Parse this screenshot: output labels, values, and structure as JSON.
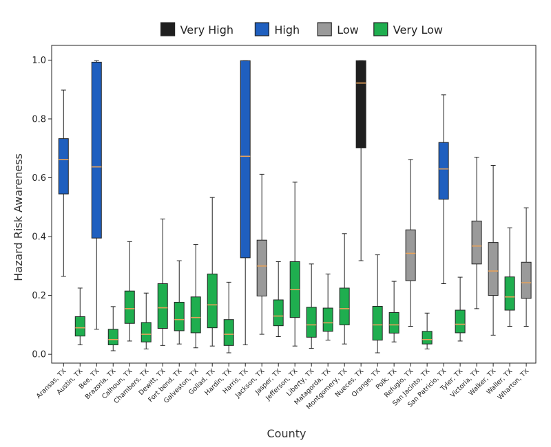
{
  "chart_data": {
    "type": "box",
    "title": "",
    "xlabel": "County",
    "ylabel": "Hazard Risk Awareness",
    "ylim": [
      -0.03,
      1.05
    ],
    "yticks": [
      "0.0",
      "0.2",
      "0.4",
      "0.6",
      "0.8",
      "1.0"
    ],
    "grid": false,
    "legend_position": "top",
    "legend": [
      {
        "name": "Very High",
        "color": "#1f1f1f"
      },
      {
        "name": "High",
        "color": "#1f5fbf"
      },
      {
        "name": "Low",
        "color": "#9a9a9a"
      },
      {
        "name": "Very Low",
        "color": "#1fae4f"
      }
    ],
    "boxes": [
      {
        "label": "Aransas, TX",
        "category": "High",
        "min": 0.265,
        "q1": 0.545,
        "median": 0.662,
        "q3": 0.733,
        "max": 0.898
      },
      {
        "label": "Austin, TX",
        "category": "Very Low",
        "min": 0.032,
        "q1": 0.062,
        "median": 0.09,
        "q3": 0.128,
        "max": 0.225
      },
      {
        "label": "Bee, TX",
        "category": "High",
        "min": 0.085,
        "q1": 0.395,
        "median": 0.637,
        "q3": 0.993,
        "max": 0.998
      },
      {
        "label": "Brazoria, TX",
        "category": "Very Low",
        "min": 0.012,
        "q1": 0.032,
        "median": 0.05,
        "q3": 0.085,
        "max": 0.162
      },
      {
        "label": "Calhoun, TX",
        "category": "Very Low",
        "min": 0.045,
        "q1": 0.105,
        "median": 0.155,
        "q3": 0.215,
        "max": 0.383
      },
      {
        "label": "Chambers, TX",
        "category": "Very Low",
        "min": 0.018,
        "q1": 0.042,
        "median": 0.068,
        "q3": 0.108,
        "max": 0.208
      },
      {
        "label": "Dewitt, TX",
        "category": "Very Low",
        "min": 0.03,
        "q1": 0.088,
        "median": 0.158,
        "q3": 0.24,
        "max": 0.46
      },
      {
        "label": "Fort bend, TX",
        "category": "Very Low",
        "min": 0.035,
        "q1": 0.08,
        "median": 0.118,
        "q3": 0.177,
        "max": 0.318
      },
      {
        "label": "Galveston, TX",
        "category": "Very Low",
        "min": 0.022,
        "q1": 0.073,
        "median": 0.125,
        "q3": 0.195,
        "max": 0.373
      },
      {
        "label": "Goliad, TX",
        "category": "Very Low",
        "min": 0.028,
        "q1": 0.09,
        "median": 0.168,
        "q3": 0.273,
        "max": 0.533
      },
      {
        "label": "Hardin, TX",
        "category": "Very Low",
        "min": 0.005,
        "q1": 0.03,
        "median": 0.068,
        "q3": 0.118,
        "max": 0.245
      },
      {
        "label": "Harris, TX",
        "category": "High",
        "min": 0.032,
        "q1": 0.328,
        "median": 0.673,
        "q3": 0.998,
        "max": 0.998
      },
      {
        "label": "Jackson, TX",
        "category": "Low",
        "min": 0.068,
        "q1": 0.198,
        "median": 0.3,
        "q3": 0.388,
        "max": 0.612
      },
      {
        "label": "Jasper, TX",
        "category": "Very Low",
        "min": 0.06,
        "q1": 0.097,
        "median": 0.13,
        "q3": 0.185,
        "max": 0.315
      },
      {
        "label": "Jefferson, TX",
        "category": "Very Low",
        "min": 0.028,
        "q1": 0.125,
        "median": 0.22,
        "q3": 0.315,
        "max": 0.585
      },
      {
        "label": "Liberty, TX",
        "category": "Very Low",
        "min": 0.02,
        "q1": 0.058,
        "median": 0.1,
        "q3": 0.16,
        "max": 0.307
      },
      {
        "label": "Matagorda, TX",
        "category": "Very Low",
        "min": 0.048,
        "q1": 0.078,
        "median": 0.107,
        "q3": 0.157,
        "max": 0.273
      },
      {
        "label": "Montgomery, TX",
        "category": "Very Low",
        "min": 0.035,
        "q1": 0.1,
        "median": 0.155,
        "q3": 0.225,
        "max": 0.41
      },
      {
        "label": "Nueces, TX",
        "category": "Very High",
        "min": 0.318,
        "q1": 0.702,
        "median": 0.922,
        "q3": 0.998,
        "max": 0.998
      },
      {
        "label": "Orange, TX",
        "category": "Very Low",
        "min": 0.005,
        "q1": 0.048,
        "median": 0.1,
        "q3": 0.163,
        "max": 0.338
      },
      {
        "label": "Polk, TX",
        "category": "Very Low",
        "min": 0.042,
        "q1": 0.072,
        "median": 0.1,
        "q3": 0.142,
        "max": 0.248
      },
      {
        "label": "Refugio, TX",
        "category": "Low",
        "min": 0.095,
        "q1": 0.25,
        "median": 0.343,
        "q3": 0.423,
        "max": 0.662
      },
      {
        "label": "San Jacinto, TX",
        "category": "Very Low",
        "min": 0.018,
        "q1": 0.035,
        "median": 0.05,
        "q3": 0.078,
        "max": 0.14
      },
      {
        "label": "San Patricio, TX",
        "category": "High",
        "min": 0.24,
        "q1": 0.527,
        "median": 0.63,
        "q3": 0.72,
        "max": 0.882
      },
      {
        "label": "Tyler, TX",
        "category": "Very Low",
        "min": 0.045,
        "q1": 0.073,
        "median": 0.102,
        "q3": 0.15,
        "max": 0.262
      },
      {
        "label": "Victoria, TX",
        "category": "Low",
        "min": 0.155,
        "q1": 0.307,
        "median": 0.368,
        "q3": 0.453,
        "max": 0.67
      },
      {
        "label": "Walker, TX",
        "category": "Low",
        "min": 0.065,
        "q1": 0.2,
        "median": 0.283,
        "q3": 0.38,
        "max": 0.642
      },
      {
        "label": "Waller, TX",
        "category": "Very Low",
        "min": 0.095,
        "q1": 0.15,
        "median": 0.195,
        "q3": 0.263,
        "max": 0.43
      },
      {
        "label": "Wharton, TX",
        "category": "Low",
        "min": 0.095,
        "q1": 0.19,
        "median": 0.243,
        "q3": 0.313,
        "max": 0.498
      }
    ],
    "median_color": "#e8a25a"
  }
}
